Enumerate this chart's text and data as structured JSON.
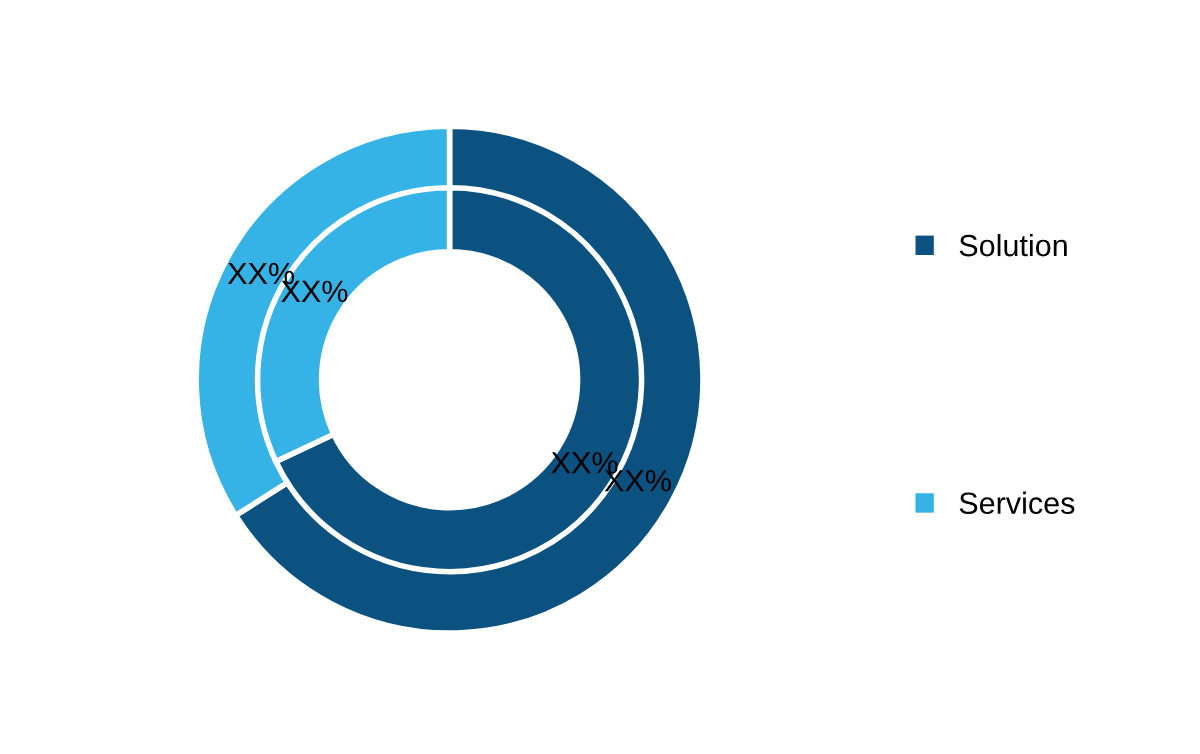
{
  "chart_data": {
    "type": "donut",
    "categories": [
      "Solution",
      "Services"
    ],
    "colors": [
      "#0b5281",
      "#35b2e6"
    ],
    "series": [
      {
        "values": [
          66,
          34
        ],
        "value_labels": [
          "XX%",
          "XX%"
        ]
      },
      {
        "values": [
          68,
          32
        ],
        "value_labels": [
          "XX%",
          "XX%"
        ]
      }
    ],
    "legend": "right"
  }
}
